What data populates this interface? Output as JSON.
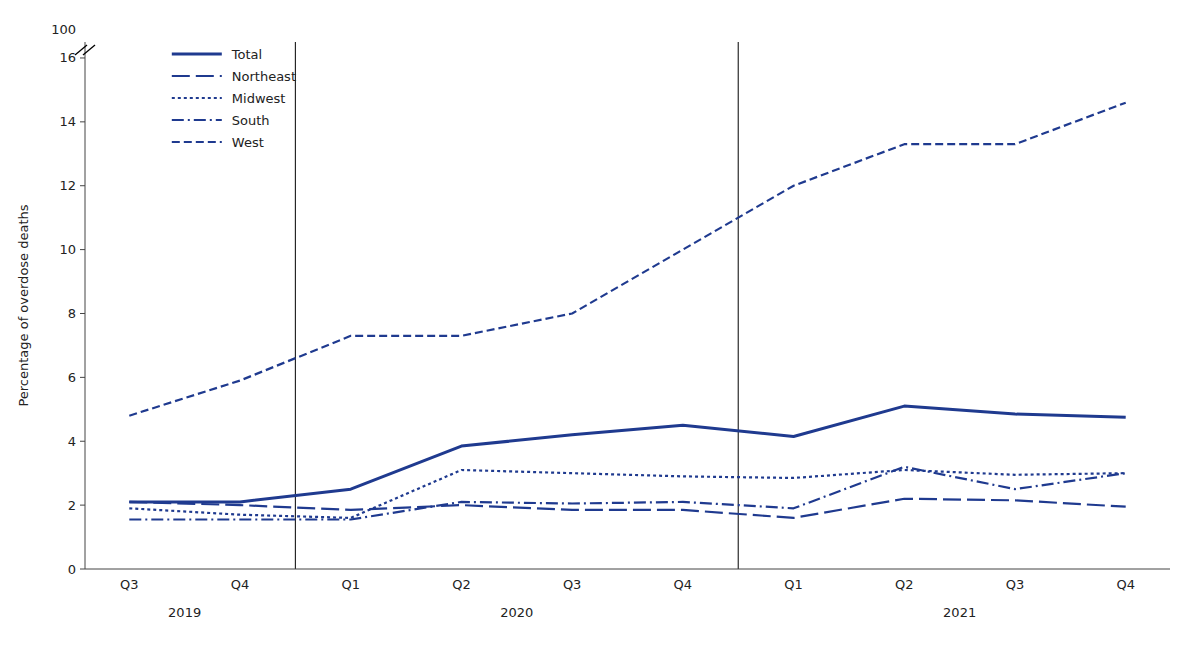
{
  "chart_data": {
    "type": "line",
    "ylabel": "Percentage of overdose deaths",
    "categories": [
      "Q3",
      "Q4",
      "Q1",
      "Q2",
      "Q3",
      "Q4",
      "Q1",
      "Q2",
      "Q3",
      "Q4"
    ],
    "category_groups": [
      {
        "label": "2019",
        "count": 2
      },
      {
        "label": "2020",
        "count": 4
      },
      {
        "label": "2021",
        "count": 4
      }
    ],
    "series": [
      {
        "name": "Total",
        "color": "#1F3A8F",
        "line_style": "solid",
        "values": [
          2.1,
          2.1,
          2.5,
          3.85,
          4.2,
          4.5,
          4.15,
          5.1,
          4.85,
          4.75
        ]
      },
      {
        "name": "Northeast",
        "color": "#1F3A8F",
        "line_style": "longdash",
        "values": [
          2.1,
          2.0,
          1.85,
          2.0,
          1.85,
          1.85,
          1.6,
          2.2,
          2.15,
          1.95
        ]
      },
      {
        "name": "Midwest",
        "color": "#1F3A8F",
        "line_style": "dotted",
        "values": [
          1.9,
          1.7,
          1.6,
          3.1,
          3.0,
          2.9,
          2.85,
          3.1,
          2.95,
          3.0
        ]
      },
      {
        "name": "South",
        "color": "#1F3A8F",
        "line_style": "dashdot",
        "values": [
          1.55,
          1.55,
          1.55,
          2.1,
          2.05,
          2.1,
          1.9,
          3.2,
          2.5,
          3.0
        ]
      },
      {
        "name": "West",
        "color": "#1F3A8F",
        "line_style": "dashed",
        "values": [
          4.8,
          5.9,
          7.3,
          7.3,
          8.0,
          10.0,
          12.0,
          13.3,
          13.3,
          14.6
        ]
      }
    ],
    "ylim": [
      0,
      16.5
    ],
    "yticks": [
      0,
      2,
      4,
      6,
      8,
      10,
      12,
      14,
      16
    ],
    "annotations": [
      {
        "text": "100"
      }
    ],
    "grid": false,
    "legend": "upper left"
  }
}
